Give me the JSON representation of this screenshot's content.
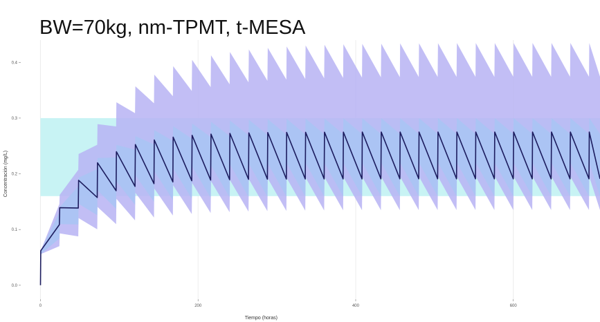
{
  "overlay_title": "BW=70kg, nm-TPMT, t-MESA",
  "colors": {
    "therapeutic_window": "#c8f3f4",
    "outer_band": "#b7b3f3",
    "inner_band": "#a8c6f3",
    "median_line": "#1c1c5e",
    "gridline": "#ececec"
  },
  "chart_data": {
    "type": "line",
    "title": "",
    "xlabel": "Tiempo (horas)",
    "ylabel": "Concentración (mg/L)",
    "xlim": [
      -25,
      710
    ],
    "ylim": [
      -0.025,
      0.44
    ],
    "x_ticks": [
      0,
      200,
      400,
      600
    ],
    "x_tick_labels": [
      "0",
      "200",
      "400",
      "600"
    ],
    "y_ticks": [
      0.0,
      0.1,
      0.2,
      0.3,
      0.4
    ],
    "y_tick_labels": [
      "0.0",
      "0.1",
      "0.2",
      "0.3",
      "0.4"
    ],
    "grid": false,
    "legend": "none",
    "therapeutic_window": {
      "x_start": 0,
      "x_end": 710,
      "y_min": 0.16,
      "y_max": 0.3
    },
    "dosing": {
      "interval_hours": 24,
      "first_dose_hour": 0,
      "trough_start": 0.062,
      "trough_steady": 0.191,
      "peak_first": 0.062,
      "peak_steady": 0.275,
      "buildup_hours": 160
    },
    "outer_band": {
      "upper_steady": 0.435,
      "lower_steady": 0.135,
      "buildup_hours": 230
    },
    "inner_band": {
      "upper_steady": 0.3,
      "lower_steady": 0.16,
      "buildup_hours": 180
    }
  }
}
